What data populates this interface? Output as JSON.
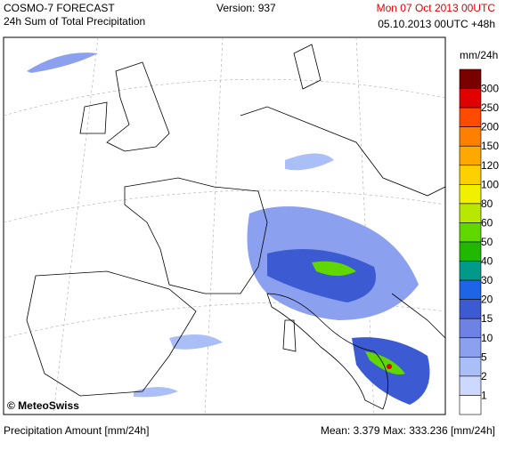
{
  "header": {
    "title": "COSMO-7 FORECAST",
    "subtitle": "24h Sum of Total Precipitation",
    "version": "Version: 937",
    "valid_time": "Mon 07 Oct 2013 00UTC",
    "run": "05.10.2013 00UTC +48h"
  },
  "legend": {
    "unit": "mm/24h",
    "levels": [
      300,
      250,
      200,
      150,
      120,
      100,
      80,
      60,
      50,
      40,
      30,
      20,
      15,
      10,
      5,
      2,
      1
    ],
    "colors": [
      "#7a0000",
      "#e00000",
      "#ff4a00",
      "#ff8000",
      "#ffa800",
      "#ffd000",
      "#f0f000",
      "#b8e800",
      "#60d800",
      "#20b800",
      "#009a8a",
      "#1e64e6",
      "#3c5ad2",
      "#6e82e6",
      "#8ca0f0",
      "#aabef8",
      "#ccd8ff",
      "#ffffff"
    ]
  },
  "credit": "© MeteoSwiss",
  "footer": {
    "left": "Precipitation Amount [mm/24h]",
    "stats": "Mean:  3.379 Max: 333.236 [mm/24h]"
  }
}
